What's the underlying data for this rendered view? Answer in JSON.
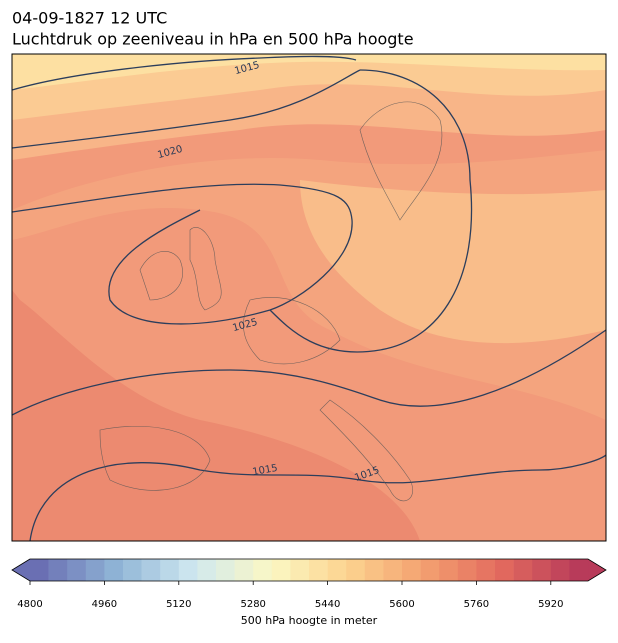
{
  "header": {
    "title_line1": "04-09-1827 12 UTC",
    "title_line2": "Luchtdruk op zeeniveau in hPa en 500 hPa hoogte"
  },
  "map": {
    "contour_labels": [
      "1015",
      "1020",
      "1025",
      "1015",
      "1015"
    ]
  },
  "colorbar": {
    "label": "500 hPa hoogte in meter",
    "lim": [
      4800,
      6000
    ],
    "ticks": [
      4800,
      4960,
      5120,
      5280,
      5440,
      5600,
      5760,
      5920
    ]
  }
}
